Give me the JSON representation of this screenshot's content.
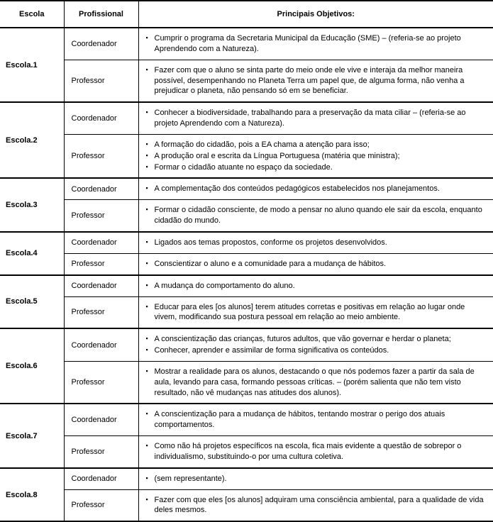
{
  "headers": {
    "escola": "Escola",
    "profissional": "Profissional",
    "objetivos": "Principais Objetivos:"
  },
  "rows": [
    {
      "escola": "Escola.1",
      "prof1": "Coordenador",
      "obj1": [
        "Cumprir o programa da Secretaria Municipal da Educação (SME) – (referia-se ao projeto Aprendendo com a Natureza)."
      ],
      "prof2": "Professor",
      "obj2": [
        "Fazer com que o aluno se sinta parte do meio onde ele vive e interaja da melhor maneira possível, desempenhando no Planeta Terra um papel que, de alguma forma, não venha a prejudicar o planeta, não pensando só em se beneficiar."
      ]
    },
    {
      "escola": "Escola.2",
      "prof1": "Coordenador",
      "obj1": [
        "Conhecer a biodiversidade, trabalhando para a preservação da mata ciliar – (referia-se ao projeto Aprendendo com a Natureza)."
      ],
      "prof2": "Professor",
      "obj2": [
        "A formação do cidadão, pois a EA chama a atenção para isso;",
        "A produção oral e escrita da Língua Portuguesa (matéria que ministra);",
        "Formar o cidadão atuante no espaço da sociedade."
      ]
    },
    {
      "escola": "Escola.3",
      "prof1": "Coordenador",
      "obj1": [
        "A complementação dos conteúdos pedagógicos estabelecidos nos planejamentos."
      ],
      "prof2": "Professor",
      "obj2": [
        "Formar o cidadão consciente, de modo a pensar no aluno quando ele sair da escola, enquanto cidadão do mundo."
      ]
    },
    {
      "escola": "Escola.4",
      "prof1": "Coordenador",
      "obj1": [
        "Ligados aos temas propostos, conforme os projetos desenvolvidos."
      ],
      "prof2": "Professor",
      "obj2": [
        "Conscientizar o aluno e a comunidade para a mudança de hábitos."
      ]
    },
    {
      "escola": "Escola.5",
      "prof1": "Coordenador",
      "obj1": [
        "A mudança do comportamento do aluno."
      ],
      "prof2": "Professor",
      "obj2": [
        "Educar para eles [os alunos] terem atitudes corretas e positivas em relação ao lugar onde vivem, modificando sua postura pessoal em relação ao meio ambiente."
      ]
    },
    {
      "escola": "Escola.6",
      "prof1": "Coordenador",
      "obj1": [
        "A conscientização das crianças, futuros adultos, que vão governar e herdar o planeta;",
        "Conhecer, aprender e assimilar de forma significativa os conteúdos."
      ],
      "prof2": "Professor",
      "obj2": [
        "Mostrar a realidade para os alunos, destacando o que nós podemos fazer a partir da sala de aula, levando para casa, formando pessoas críticas. – (porém salienta que não tem visto resultado, não vê mudanças nas atitudes dos alunos)."
      ]
    },
    {
      "escola": "Escola.7",
      "prof1": "Coordenador",
      "obj1": [
        "A conscientização para a mudança de hábitos, tentando mostrar o perigo dos atuais comportamentos."
      ],
      "prof2": "Professor",
      "obj2": [
        "Como não há projetos específicos na escola, fica mais evidente a questão de sobrepor o individualismo, substituindo-o por uma cultura coletiva."
      ]
    },
    {
      "escola": "Escola.8",
      "prof1": "Coordenador",
      "obj1": [
        "(sem representante)."
      ],
      "prof2": "Professor",
      "obj2": [
        "Fazer com que eles [os alunos] adquiram uma consciência ambiental, para a qualidade de vida deles mesmos."
      ]
    }
  ]
}
